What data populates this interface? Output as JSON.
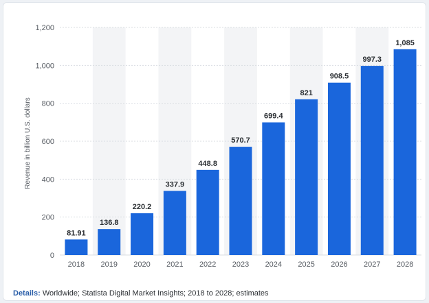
{
  "chart_data": {
    "type": "bar",
    "categories": [
      "2018",
      "2019",
      "2020",
      "2021",
      "2022",
      "2023",
      "2024",
      "2025",
      "2026",
      "2027",
      "2028"
    ],
    "values": [
      81.91,
      136.8,
      220.2,
      337.9,
      448.8,
      570.7,
      699.4,
      821,
      908.5,
      997.3,
      1085
    ],
    "value_labels": [
      "81.91",
      "136.8",
      "220.2",
      "337.9",
      "448.8",
      "570.7",
      "699.4",
      "821",
      "908.5",
      "997.3",
      "1,085"
    ],
    "ylabel": "Revenue in billion U.S. dollars",
    "ylim": [
      0,
      1200
    ],
    "yticks": [
      0,
      200,
      400,
      600,
      800,
      1000,
      1200
    ],
    "ytick_labels": [
      "0",
      "200",
      "400",
      "600",
      "800",
      "1,000",
      "1,200"
    ],
    "grid": true,
    "bar_color": "#1a66dc",
    "band_color": "#f3f4f6"
  },
  "details": {
    "label": "Details:",
    "text": "Worldwide; Statista Digital Market Insights; 2018 to 2028; estimates"
  }
}
